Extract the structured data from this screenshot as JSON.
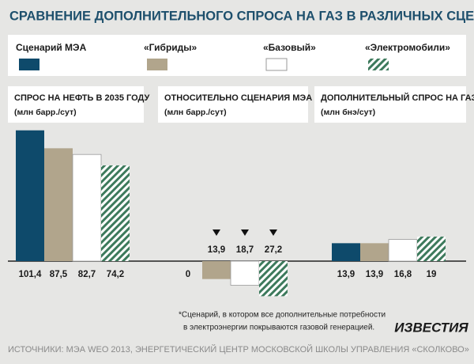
{
  "title": "СРАВНЕНИЕ ДОПОЛНИТЕЛЬНОГО СПРОСА НА ГАЗ В РАЗЛИЧНЫХ СЦЕНАРИЯХ",
  "legend": {
    "series": [
      {
        "name": "Сценарий МЭА",
        "color": "#0e4a6b"
      },
      {
        "name": "«Гибриды»",
        "color": "#b1a58c"
      },
      {
        "name": "«Базовый»",
        "color": "#ffffff"
      },
      {
        "name": "«Электромобили»",
        "color": "#3d7a5c",
        "pattern": "hatch"
      }
    ]
  },
  "chart_data": [
    {
      "type": "bar",
      "title": "СПРОС НА НЕФТЬ В 2035 ГОДУ",
      "subtitle": "(млн барр./сут)",
      "values": [
        101.4,
        87.5,
        82.7,
        74.2
      ],
      "value_labels": [
        "101,4",
        "87,5",
        "82,7",
        "74,2"
      ]
    },
    {
      "type": "bar",
      "title": "ОТНОСИТЕЛЬНО СЦЕНАРИЯ МЭА",
      "subtitle": "(млн барр./сут)",
      "values": [
        0,
        -13.9,
        -18.7,
        -27.2
      ],
      "value_labels": [
        "0",
        "13,9",
        "18,7",
        "27,2"
      ]
    },
    {
      "type": "bar",
      "title": "ДОПОЛНИТЕЛЬНЫЙ СПРОС НА ГАЗ*",
      "subtitle": "(млн бнэ/сут)",
      "values": [
        13.9,
        13.9,
        16.8,
        19
      ],
      "value_labels": [
        "13,9",
        "13,9",
        "16,8",
        "19"
      ]
    }
  ],
  "footnote": [
    "*Сценарий, в котором все дополнительные потребности",
    "в электроэнергии покрываются газовой генерацией."
  ],
  "logo": "ИЗВЕСТИЯ",
  "source": "ИСТОЧНИКИ: МЭА WEO 2013, ЭНЕРГЕТИЧЕСКИЙ ЦЕНТР МОСКОВСКОЙ ШКОЛЫ УПРАВЛЕНИЯ «СКОЛКОВО»"
}
